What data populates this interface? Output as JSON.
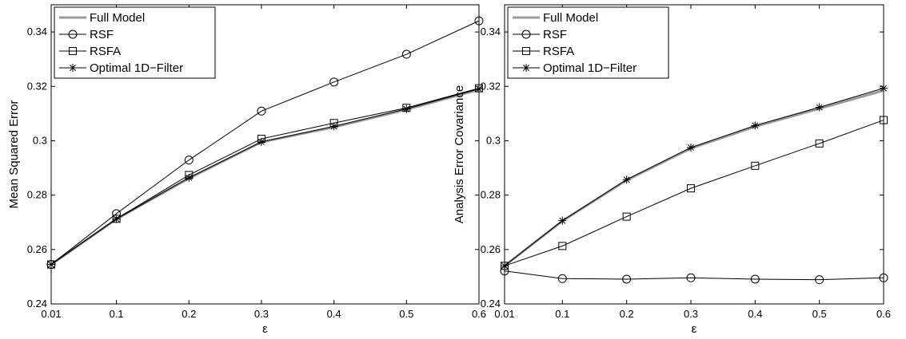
{
  "chart_data": [
    {
      "type": "line",
      "xlabel": "ε",
      "ylabel": "Mean Squared Error",
      "x": [
        0.01,
        0.1,
        0.2,
        0.3,
        0.4,
        0.5,
        0.6
      ],
      "x_tick_labels": [
        "0.01",
        "0.1",
        "0.2",
        "0.3",
        "0.4",
        "0.5",
        "0.6"
      ],
      "xlim": [
        0.01,
        0.6
      ],
      "ylim": [
        0.24,
        0.35
      ],
      "y_ticks": [
        0.24,
        0.26,
        0.28,
        0.3,
        0.32,
        0.34
      ],
      "y_tick_labels": [
        "0.24",
        "0.26",
        "0.28",
        "0.3",
        "0.32",
        "0.34"
      ],
      "grid": false,
      "legend_position": "top-left",
      "series": [
        {
          "name": "Full Model",
          "marker": "none",
          "color": "#9a9a9a",
          "values": [
            0.2545,
            0.2712,
            0.2862,
            0.2995,
            0.305,
            0.3115,
            0.3188
          ]
        },
        {
          "name": "RSF",
          "marker": "circle",
          "color": "#000000",
          "values": [
            0.2545,
            0.2732,
            0.2929,
            0.3109,
            0.3216,
            0.3318,
            0.3441
          ]
        },
        {
          "name": "RSFA",
          "marker": "square",
          "color": "#000000",
          "values": [
            0.2545,
            0.2713,
            0.2874,
            0.3007,
            0.3065,
            0.3121,
            0.3193
          ]
        },
        {
          "name": "Optimal 1D−Filter",
          "marker": "star",
          "color": "#000000",
          "values": [
            0.2545,
            0.2712,
            0.2864,
            0.2996,
            0.3053,
            0.3117,
            0.3191
          ]
        }
      ]
    },
    {
      "type": "line",
      "xlabel": "ε",
      "ylabel": "Analysis Error Covariance",
      "x": [
        0.01,
        0.1,
        0.2,
        0.3,
        0.4,
        0.5,
        0.6
      ],
      "x_tick_labels": [
        "0.01",
        "0.1",
        "0.2",
        "0.3",
        "0.4",
        "0.5",
        "0.6"
      ],
      "xlim": [
        0.01,
        0.6
      ],
      "ylim": [
        0.24,
        0.35
      ],
      "y_ticks": [
        0.24,
        0.26,
        0.28,
        0.3,
        0.32,
        0.34
      ],
      "y_tick_labels": [
        "0.24",
        "0.26",
        "0.28",
        "0.3",
        "0.32",
        "0.34"
      ],
      "grid": false,
      "legend_position": "top-left",
      "series": [
        {
          "name": "Full Model",
          "marker": "none",
          "color": "#9a9a9a",
          "values": [
            0.254,
            0.2705,
            0.2855,
            0.2972,
            0.3052,
            0.3118,
            0.3185
          ]
        },
        {
          "name": "RSF",
          "marker": "circle",
          "color": "#000000",
          "values": [
            0.2521,
            0.2493,
            0.2491,
            0.2496,
            0.2491,
            0.2489,
            0.2496
          ]
        },
        {
          "name": "RSFA",
          "marker": "square",
          "color": "#000000",
          "values": [
            0.254,
            0.2613,
            0.2721,
            0.2825,
            0.2908,
            0.299,
            0.3076
          ]
        },
        {
          "name": "Optimal 1D−Filter",
          "marker": "star",
          "color": "#000000",
          "values": [
            0.254,
            0.2706,
            0.2857,
            0.2975,
            0.3056,
            0.3123,
            0.3193
          ]
        }
      ]
    }
  ]
}
